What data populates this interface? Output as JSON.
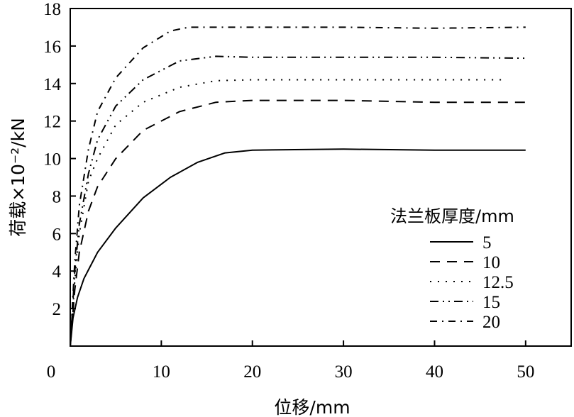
{
  "chart_data": {
    "type": "line",
    "xlabel": "位移/mm",
    "ylabel": "荷载×10⁻²/kN",
    "xlim": [
      0,
      55
    ],
    "ylim": [
      0,
      18
    ],
    "x_ticks": [
      "0",
      "10",
      "20",
      "30",
      "40",
      "50"
    ],
    "y_ticks": [
      "2",
      "4",
      "6",
      "8",
      "10",
      "12",
      "14",
      "16",
      "18"
    ],
    "legend": {
      "title": "法兰板厚度/mm",
      "position": "right"
    },
    "series": [
      {
        "name": "5",
        "dash": "solid",
        "points": [
          [
            0,
            0
          ],
          [
            0.3,
            1.5
          ],
          [
            0.8,
            2.6
          ],
          [
            1.5,
            3.6
          ],
          [
            3,
            5
          ],
          [
            5,
            6.3
          ],
          [
            8,
            7.9
          ],
          [
            11,
            9
          ],
          [
            14,
            9.8
          ],
          [
            17,
            10.3
          ],
          [
            20,
            10.45
          ],
          [
            30,
            10.5
          ],
          [
            40,
            10.45
          ],
          [
            50,
            10.45
          ]
        ]
      },
      {
        "name": "10",
        "dash": "dash",
        "points": [
          [
            0,
            0
          ],
          [
            0.5,
            3
          ],
          [
            1,
            5
          ],
          [
            2,
            7.2
          ],
          [
            3,
            8.5
          ],
          [
            5,
            10
          ],
          [
            8,
            11.5
          ],
          [
            12,
            12.5
          ],
          [
            16,
            13
          ],
          [
            20,
            13.1
          ],
          [
            30,
            13.1
          ],
          [
            40,
            13.0
          ],
          [
            50,
            13.0
          ]
        ]
      },
      {
        "name": "12.5",
        "dash": "dot",
        "points": [
          [
            0,
            0
          ],
          [
            0.5,
            3.5
          ],
          [
            1,
            6
          ],
          [
            2,
            8.8
          ],
          [
            3,
            10
          ],
          [
            5,
            11.8
          ],
          [
            8,
            13
          ],
          [
            12,
            13.8
          ],
          [
            16,
            14.15
          ],
          [
            20,
            14.2
          ],
          [
            30,
            14.2
          ],
          [
            40,
            14.2
          ],
          [
            48,
            14.2
          ]
        ]
      },
      {
        "name": "15",
        "dash": "dashdotdot",
        "points": [
          [
            0,
            0
          ],
          [
            0.5,
            4
          ],
          [
            1,
            6.5
          ],
          [
            2,
            9.2
          ],
          [
            3,
            11
          ],
          [
            5,
            12.8
          ],
          [
            8,
            14.2
          ],
          [
            12,
            15.2
          ],
          [
            16,
            15.45
          ],
          [
            20,
            15.4
          ],
          [
            30,
            15.4
          ],
          [
            40,
            15.4
          ],
          [
            50,
            15.35
          ]
        ]
      },
      {
        "name": "20",
        "dash": "dashdot",
        "points": [
          [
            0,
            0
          ],
          [
            0.5,
            4.5
          ],
          [
            1,
            7.5
          ],
          [
            2,
            10.5
          ],
          [
            3,
            12.5
          ],
          [
            5,
            14.3
          ],
          [
            8,
            15.9
          ],
          [
            11,
            16.8
          ],
          [
            13,
            17.0
          ],
          [
            20,
            17.0
          ],
          [
            30,
            17.0
          ],
          [
            40,
            16.95
          ],
          [
            50,
            17.0
          ]
        ]
      }
    ]
  }
}
